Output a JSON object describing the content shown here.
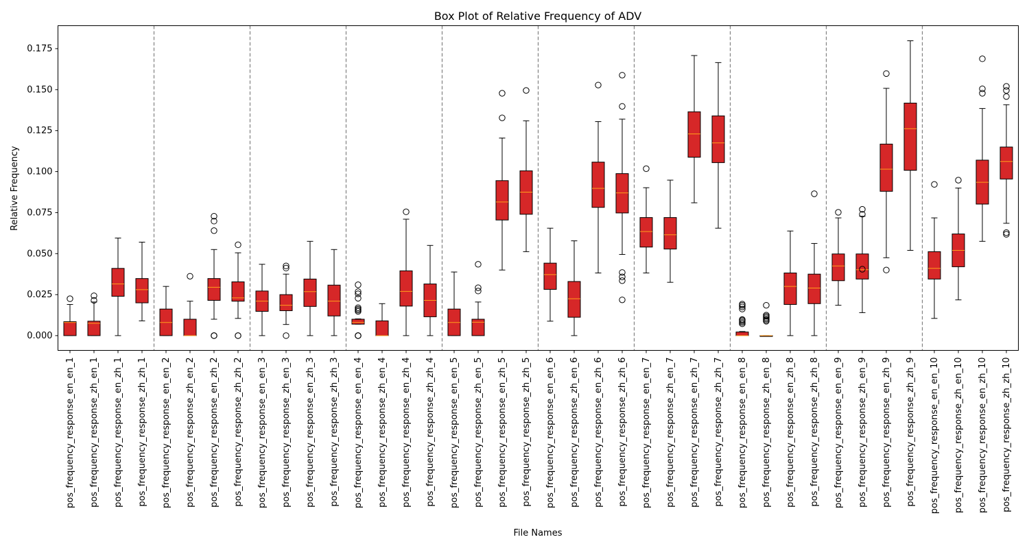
{
  "chart_data": {
    "type": "box",
    "title": "Box Plot of Relative Frequency of ADV",
    "xlabel": "File Names",
    "ylabel": "Relative Frequency",
    "ylim": [
      -0.009,
      0.189
    ],
    "yticks": [
      0.0,
      0.025,
      0.05,
      0.075,
      0.1,
      0.125,
      0.15,
      0.175
    ],
    "ytick_labels": [
      "0.000",
      "0.025",
      "0.050",
      "0.075",
      "0.100",
      "0.125",
      "0.150",
      "0.175"
    ],
    "group_separators_after_index": [
      3,
      7,
      11,
      15,
      19,
      23,
      27,
      31,
      35
    ],
    "categories": [
      "pos_frequency_response_en_en_1",
      "pos_frequency_response_zh_en_1",
      "pos_frequency_response_en_zh_1",
      "pos_frequency_response_zh_zh_1",
      "pos_frequency_response_en_en_2",
      "pos_frequency_response_zh_en_2",
      "pos_frequency_response_en_zh_2",
      "pos_frequency_response_zh_zh_2",
      "pos_frequency_response_en_en_3",
      "pos_frequency_response_zh_en_3",
      "pos_frequency_response_en_zh_3",
      "pos_frequency_response_zh_zh_3",
      "pos_frequency_response_en_en_4",
      "pos_frequency_response_zh_en_4",
      "pos_frequency_response_en_zh_4",
      "pos_frequency_response_zh_zh_4",
      "pos_frequency_response_en_en_5",
      "pos_frequency_response_zh_en_5",
      "pos_frequency_response_en_zh_5",
      "pos_frequency_response_zh_zh_5",
      "pos_frequency_response_en_en_6",
      "pos_frequency_response_zh_en_6",
      "pos_frequency_response_en_zh_6",
      "pos_frequency_response_zh_zh_6",
      "pos_frequency_response_en_en_7",
      "pos_frequency_response_zh_en_7",
      "pos_frequency_response_en_zh_7",
      "pos_frequency_response_zh_zh_7",
      "pos_frequency_response_en_en_8",
      "pos_frequency_response_zh_en_8",
      "pos_frequency_response_en_zh_8",
      "pos_frequency_response_zh_zh_8",
      "pos_frequency_response_en_en_9",
      "pos_frequency_response_zh_en_9",
      "pos_frequency_response_en_zh_9",
      "pos_frequency_response_zh_zh_9",
      "pos_frequency_response_en_en_10",
      "pos_frequency_response_zh_en_10",
      "pos_frequency_response_en_zh_10",
      "pos_frequency_response_zh_zh_10"
    ],
    "boxes": [
      {
        "whislo": 0.0,
        "q1": 0.0,
        "med": 0.008,
        "q3": 0.0085,
        "whishi": 0.019,
        "fliers": [
          0.0225
        ]
      },
      {
        "whislo": 0.0,
        "q1": 0.0,
        "med": 0.0075,
        "q3": 0.0088,
        "whishi": 0.0205,
        "fliers": [
          0.0215,
          0.0243
        ]
      },
      {
        "whislo": 0.0,
        "q1": 0.024,
        "med": 0.0315,
        "q3": 0.041,
        "whishi": 0.0595,
        "fliers": []
      },
      {
        "whislo": 0.009,
        "q1": 0.02,
        "med": 0.028,
        "q3": 0.0348,
        "whishi": 0.057,
        "fliers": []
      },
      {
        "whislo": 0.0,
        "q1": 0.0,
        "med": 0.008,
        "q3": 0.0162,
        "whishi": 0.03,
        "fliers": []
      },
      {
        "whislo": 0.0,
        "q1": 0.0,
        "med": 0.0,
        "q3": 0.01,
        "whishi": 0.021,
        "fliers": [
          0.0362
        ]
      },
      {
        "whislo": 0.01,
        "q1": 0.0215,
        "med": 0.0295,
        "q3": 0.0348,
        "whishi": 0.0525,
        "fliers": [
          0.0,
          0.0,
          0.0,
          0.064,
          0.0698,
          0.0728
        ]
      },
      {
        "whislo": 0.0105,
        "q1": 0.021,
        "med": 0.023,
        "q3": 0.0328,
        "whishi": 0.0505,
        "fliers": [
          0.0,
          0.0,
          0.0554
        ]
      },
      {
        "whislo": 0.0,
        "q1": 0.0148,
        "med": 0.021,
        "q3": 0.0272,
        "whishi": 0.0435,
        "fliers": []
      },
      {
        "whislo": 0.0068,
        "q1": 0.0152,
        "med": 0.0185,
        "q3": 0.025,
        "whishi": 0.0375,
        "fliers": [
          0.0,
          0.0412,
          0.0425
        ]
      },
      {
        "whislo": 0.0,
        "q1": 0.0178,
        "med": 0.0268,
        "q3": 0.0345,
        "whishi": 0.0575,
        "fliers": []
      },
      {
        "whislo": 0.0,
        "q1": 0.012,
        "med": 0.021,
        "q3": 0.0308,
        "whishi": 0.0525,
        "fliers": []
      },
      {
        "whislo": 0.007,
        "q1": 0.007,
        "med": 0.008,
        "q3": 0.01,
        "whishi": 0.0102,
        "fliers": [
          0.0,
          0.0,
          0.0,
          0.0,
          0.0148,
          0.0155,
          0.0162,
          0.017,
          0.0228,
          0.0255,
          0.0268,
          0.031
        ]
      },
      {
        "whislo": 0.0,
        "q1": 0.0,
        "med": 0.0,
        "q3": 0.009,
        "whishi": 0.0195,
        "fliers": []
      },
      {
        "whislo": 0.0,
        "q1": 0.018,
        "med": 0.027,
        "q3": 0.0395,
        "whishi": 0.071,
        "fliers": [
          0.0755
        ]
      },
      {
        "whislo": 0.0,
        "q1": 0.0115,
        "med": 0.0215,
        "q3": 0.0315,
        "whishi": 0.055,
        "fliers": []
      },
      {
        "whislo": 0.0,
        "q1": 0.0,
        "med": 0.008,
        "q3": 0.0162,
        "whishi": 0.0388,
        "fliers": []
      },
      {
        "whislo": 0.0,
        "q1": 0.0,
        "med": 0.0082,
        "q3": 0.01,
        "whishi": 0.0205,
        "fliers": [
          0.0272,
          0.0292,
          0.0435
        ]
      },
      {
        "whislo": 0.04,
        "q1": 0.0705,
        "med": 0.0815,
        "q3": 0.0945,
        "whishi": 0.1205,
        "fliers": [
          0.1328,
          0.1478
        ]
      },
      {
        "whislo": 0.0512,
        "q1": 0.074,
        "med": 0.0875,
        "q3": 0.1005,
        "whishi": 0.131,
        "fliers": [
          0.1495
        ]
      },
      {
        "whislo": 0.0088,
        "q1": 0.0282,
        "med": 0.0372,
        "q3": 0.0442,
        "whishi": 0.0655,
        "fliers": []
      },
      {
        "whislo": 0.0,
        "q1": 0.0112,
        "med": 0.0225,
        "q3": 0.033,
        "whishi": 0.0578,
        "fliers": []
      },
      {
        "whislo": 0.0382,
        "q1": 0.0782,
        "med": 0.0898,
        "q3": 0.1058,
        "whishi": 0.1305,
        "fliers": [
          0.1528
        ]
      },
      {
        "whislo": 0.0495,
        "q1": 0.0748,
        "med": 0.087,
        "q3": 0.0988,
        "whishi": 0.132,
        "fliers": [
          0.0218,
          0.0335,
          0.0358,
          0.0385,
          0.1398,
          0.1588
        ]
      },
      {
        "whislo": 0.0382,
        "q1": 0.054,
        "med": 0.0635,
        "q3": 0.072,
        "whishi": 0.0902,
        "fliers": [
          0.1018
        ]
      },
      {
        "whislo": 0.0325,
        "q1": 0.0528,
        "med": 0.0615,
        "q3": 0.072,
        "whishi": 0.0948,
        "fliers": []
      },
      {
        "whislo": 0.081,
        "q1": 0.1088,
        "med": 0.123,
        "q3": 0.1365,
        "whishi": 0.1708,
        "fliers": []
      },
      {
        "whislo": 0.0655,
        "q1": 0.1055,
        "med": 0.1175,
        "q3": 0.134,
        "whishi": 0.1665,
        "fliers": []
      },
      {
        "whislo": 0.0,
        "q1": 0.0,
        "med": 0.0,
        "q3": 0.0022,
        "whishi": 0.0025,
        "fliers": [
          0.0072,
          0.008,
          0.0088,
          0.0095,
          0.0098,
          0.0162,
          0.0175,
          0.0185,
          0.0192
        ]
      },
      {
        "whislo": 0.0,
        "q1": 0.0,
        "med": 0.0,
        "q3": 0.0,
        "whishi": 0.0,
        "fliers": [
          0.0088,
          0.0095,
          0.0102,
          0.011,
          0.0118,
          0.0125,
          0.0185
        ]
      },
      {
        "whislo": 0.0,
        "q1": 0.019,
        "med": 0.03,
        "q3": 0.0382,
        "whishi": 0.0638,
        "fliers": []
      },
      {
        "whislo": 0.0,
        "q1": 0.0195,
        "med": 0.029,
        "q3": 0.0375,
        "whishi": 0.0562,
        "fliers": [
          0.0865
        ]
      },
      {
        "whislo": 0.0185,
        "q1": 0.0335,
        "med": 0.0425,
        "q3": 0.0498,
        "whishi": 0.0718,
        "fliers": [
          0.0752
        ]
      },
      {
        "whislo": 0.014,
        "q1": 0.0345,
        "med": 0.0402,
        "q3": 0.0498,
        "whishi": 0.0728,
        "fliers": [
          0.0405,
          0.074,
          0.077
        ]
      },
      {
        "whislo": 0.0475,
        "q1": 0.088,
        "med": 0.1015,
        "q3": 0.1168,
        "whishi": 0.1508,
        "fliers": [
          0.04,
          0.1598
        ]
      },
      {
        "whislo": 0.052,
        "q1": 0.1008,
        "med": 0.1262,
        "q3": 0.1418,
        "whishi": 0.1798,
        "fliers": []
      },
      {
        "whislo": 0.0105,
        "q1": 0.0345,
        "med": 0.041,
        "q3": 0.0512,
        "whishi": 0.0718,
        "fliers": [
          0.0922
        ]
      },
      {
        "whislo": 0.0218,
        "q1": 0.042,
        "med": 0.052,
        "q3": 0.062,
        "whishi": 0.09,
        "fliers": [
          0.0948
        ]
      },
      {
        "whislo": 0.0575,
        "q1": 0.0802,
        "med": 0.0935,
        "q3": 0.107,
        "whishi": 0.1385,
        "fliers": [
          0.1478,
          0.1505,
          0.1688
        ]
      },
      {
        "whislo": 0.0685,
        "q1": 0.0955,
        "med": 0.1062,
        "q3": 0.115,
        "whishi": 0.1408,
        "fliers": [
          0.0618,
          0.0628,
          0.1458,
          0.1495,
          0.152
        ]
      }
    ],
    "colors": {
      "box_fill": "#d62728",
      "box_edge": "#000000",
      "median": "#ff9f1a",
      "whisker": "#000000",
      "flier_edge": "#000000",
      "separator": "#808080",
      "axes": "#000000"
    }
  }
}
